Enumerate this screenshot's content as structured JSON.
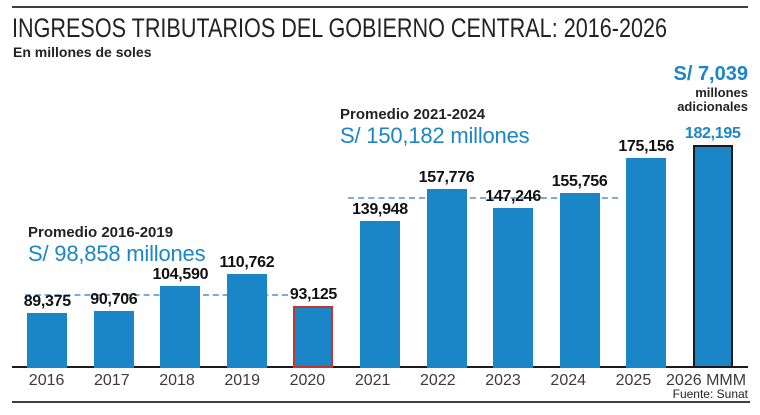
{
  "chart_data": {
    "type": "bar",
    "title": "INGRESOS TRIBUTARIOS DEL GOBIERNO CENTRAL: 2016-2026",
    "subtitle": "En millones de soles",
    "source": "Fuente: Sunat",
    "ylabel": "",
    "xlabel": "",
    "ylim": [
      59000,
      223600
    ],
    "grid": false,
    "legend": false,
    "categories": [
      "2016",
      "2017",
      "2018",
      "2019",
      "2020",
      "2021",
      "2022",
      "2023",
      "2024",
      "2025",
      "2026 MMM"
    ],
    "values": [
      89375,
      90706,
      104590,
      110762,
      93125,
      139948,
      157776,
      147246,
      155756,
      175156,
      182195
    ],
    "bars": [
      {
        "category": "2016",
        "value": 89375,
        "label": "89,375",
        "style": "normal",
        "label_color": "dark"
      },
      {
        "category": "2017",
        "value": 90706,
        "label": "90,706",
        "style": "normal",
        "label_color": "dark"
      },
      {
        "category": "2018",
        "value": 104590,
        "label": "104,590",
        "style": "normal",
        "label_color": "dark"
      },
      {
        "category": "2019",
        "value": 110762,
        "label": "110,762",
        "style": "normal",
        "label_color": "dark"
      },
      {
        "category": "2020",
        "value": 93125,
        "label": "93,125",
        "style": "red-outline",
        "label_color": "dark"
      },
      {
        "category": "2021",
        "value": 139948,
        "label": "139,948",
        "style": "normal",
        "label_color": "dark"
      },
      {
        "category": "2022",
        "value": 157776,
        "label": "157,776",
        "style": "normal",
        "label_color": "dark"
      },
      {
        "category": "2023",
        "value": 147246,
        "label": "147,246",
        "style": "normal",
        "label_color": "dark"
      },
      {
        "category": "2024",
        "value": 155756,
        "label": "155,756",
        "style": "normal",
        "label_color": "dark"
      },
      {
        "category": "2025",
        "value": 175156,
        "label": "175,156",
        "style": "normal",
        "label_color": "dark"
      },
      {
        "category": "2026 MMM",
        "value": 182195,
        "label": "182,195",
        "style": "black-outline",
        "label_color": "blue"
      }
    ],
    "average_lines": [
      {
        "label": "Promedio 2016-2019",
        "value": 98858,
        "value_text": "S/ 98,858 millones",
        "spans_categories": [
          "2016",
          "2017",
          "2018",
          "2019"
        ]
      },
      {
        "label": "Promedio 2021-2024",
        "value": 150182,
        "value_text": "S/ 150,182 millones",
        "spans_categories": [
          "2021",
          "2022",
          "2023",
          "2024"
        ]
      }
    ],
    "callout": {
      "value_text": "S/ 7,039",
      "caption": "millones adicionales"
    },
    "colors": {
      "bar": "#1a86c8",
      "blue_text": "#1a86c8",
      "dashed_line": "#7dabd6",
      "red_outline": "#c4372e",
      "black_outline": "#1a1a1a"
    }
  }
}
